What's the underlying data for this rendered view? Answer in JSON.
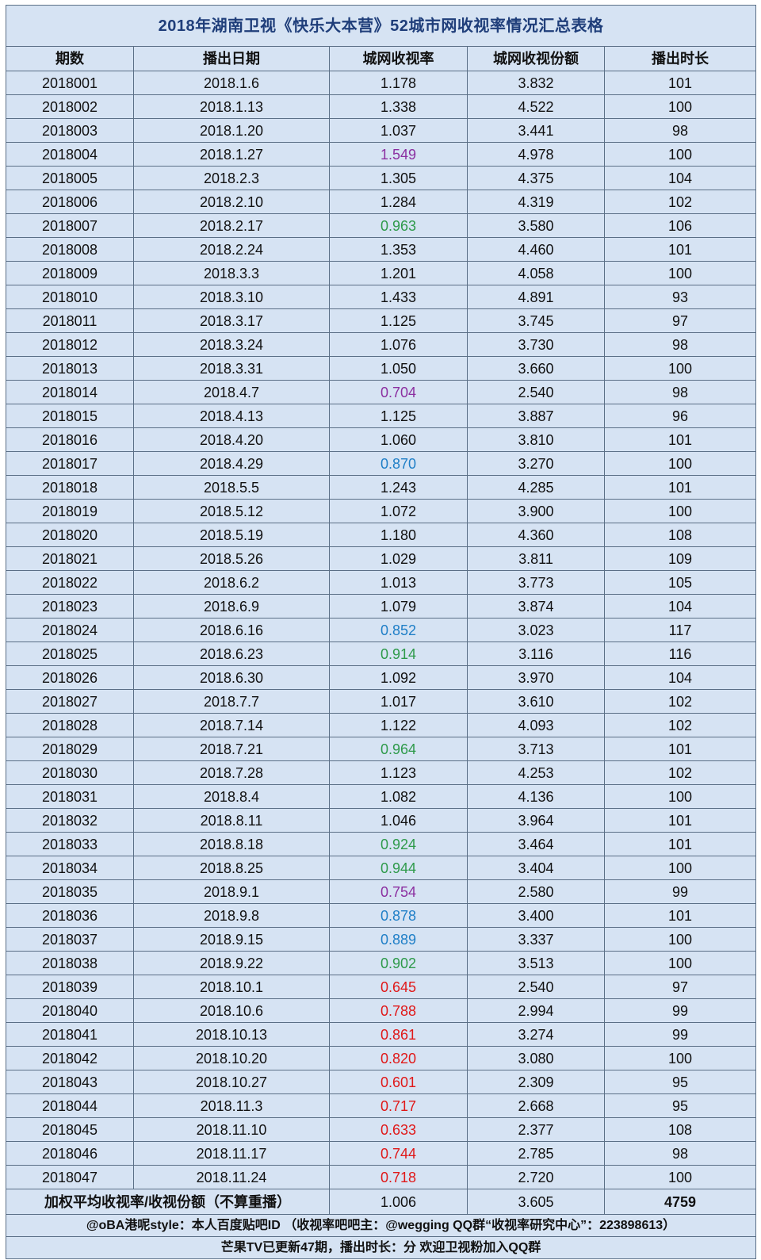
{
  "title": "2018年湖南卫视《快乐大本营》52城市网收视率情况汇总表格",
  "headers": [
    "期数",
    "播出日期",
    "城网收视率",
    "城网收视份额",
    "播出时长"
  ],
  "colors": {
    "default": "#111111",
    "purple": "#8b2fa0",
    "green": "#2e9a4a",
    "blue": "#1f7fc7",
    "red": "#e01818",
    "header_text": "#1f3e7a",
    "background": "#d6e3f3"
  },
  "rows": [
    {
      "issue": "2018001",
      "date": "2018.1.6",
      "rating": "1.178",
      "share": "3.832",
      "duration": "101",
      "color": "default"
    },
    {
      "issue": "2018002",
      "date": "2018.1.13",
      "rating": "1.338",
      "share": "4.522",
      "duration": "100",
      "color": "default"
    },
    {
      "issue": "2018003",
      "date": "2018.1.20",
      "rating": "1.037",
      "share": "3.441",
      "duration": "98",
      "color": "default"
    },
    {
      "issue": "2018004",
      "date": "2018.1.27",
      "rating": "1.549",
      "share": "4.978",
      "duration": "100",
      "color": "purple"
    },
    {
      "issue": "2018005",
      "date": "2018.2.3",
      "rating": "1.305",
      "share": "4.375",
      "duration": "104",
      "color": "default"
    },
    {
      "issue": "2018006",
      "date": "2018.2.10",
      "rating": "1.284",
      "share": "4.319",
      "duration": "102",
      "color": "default"
    },
    {
      "issue": "2018007",
      "date": "2018.2.17",
      "rating": "0.963",
      "share": "3.580",
      "duration": "106",
      "color": "green"
    },
    {
      "issue": "2018008",
      "date": "2018.2.24",
      "rating": "1.353",
      "share": "4.460",
      "duration": "101",
      "color": "default"
    },
    {
      "issue": "2018009",
      "date": "2018.3.3",
      "rating": "1.201",
      "share": "4.058",
      "duration": "100",
      "color": "default"
    },
    {
      "issue": "2018010",
      "date": "2018.3.10",
      "rating": "1.433",
      "share": "4.891",
      "duration": "93",
      "color": "default"
    },
    {
      "issue": "2018011",
      "date": "2018.3.17",
      "rating": "1.125",
      "share": "3.745",
      "duration": "97",
      "color": "default"
    },
    {
      "issue": "2018012",
      "date": "2018.3.24",
      "rating": "1.076",
      "share": "3.730",
      "duration": "98",
      "color": "default"
    },
    {
      "issue": "2018013",
      "date": "2018.3.31",
      "rating": "1.050",
      "share": "3.660",
      "duration": "100",
      "color": "default"
    },
    {
      "issue": "2018014",
      "date": "2018.4.7",
      "rating": "0.704",
      "share": "2.540",
      "duration": "98",
      "color": "purple"
    },
    {
      "issue": "2018015",
      "date": "2018.4.13",
      "rating": "1.125",
      "share": "3.887",
      "duration": "96",
      "color": "default"
    },
    {
      "issue": "2018016",
      "date": "2018.4.20",
      "rating": "1.060",
      "share": "3.810",
      "duration": "101",
      "color": "default"
    },
    {
      "issue": "2018017",
      "date": "2018.4.29",
      "rating": "0.870",
      "share": "3.270",
      "duration": "100",
      "color": "blue"
    },
    {
      "issue": "2018018",
      "date": "2018.5.5",
      "rating": "1.243",
      "share": "4.285",
      "duration": "101",
      "color": "default"
    },
    {
      "issue": "2018019",
      "date": "2018.5.12",
      "rating": "1.072",
      "share": "3.900",
      "duration": "100",
      "color": "default"
    },
    {
      "issue": "2018020",
      "date": "2018.5.19",
      "rating": "1.180",
      "share": "4.360",
      "duration": "108",
      "color": "default"
    },
    {
      "issue": "2018021",
      "date": "2018.5.26",
      "rating": "1.029",
      "share": "3.811",
      "duration": "109",
      "color": "default"
    },
    {
      "issue": "2018022",
      "date": "2018.6.2",
      "rating": "1.013",
      "share": "3.773",
      "duration": "105",
      "color": "default"
    },
    {
      "issue": "2018023",
      "date": "2018.6.9",
      "rating": "1.079",
      "share": "3.874",
      "duration": "104",
      "color": "default"
    },
    {
      "issue": "2018024",
      "date": "2018.6.16",
      "rating": "0.852",
      "share": "3.023",
      "duration": "117",
      "color": "blue"
    },
    {
      "issue": "2018025",
      "date": "2018.6.23",
      "rating": "0.914",
      "share": "3.116",
      "duration": "116",
      "color": "green"
    },
    {
      "issue": "2018026",
      "date": "2018.6.30",
      "rating": "1.092",
      "share": "3.970",
      "duration": "104",
      "color": "default"
    },
    {
      "issue": "2018027",
      "date": "2018.7.7",
      "rating": "1.017",
      "share": "3.610",
      "duration": "102",
      "color": "default"
    },
    {
      "issue": "2018028",
      "date": "2018.7.14",
      "rating": "1.122",
      "share": "4.093",
      "duration": "102",
      "color": "default"
    },
    {
      "issue": "2018029",
      "date": "2018.7.21",
      "rating": "0.964",
      "share": "3.713",
      "duration": "101",
      "color": "green"
    },
    {
      "issue": "2018030",
      "date": "2018.7.28",
      "rating": "1.123",
      "share": "4.253",
      "duration": "102",
      "color": "default"
    },
    {
      "issue": "2018031",
      "date": "2018.8.4",
      "rating": "1.082",
      "share": "4.136",
      "duration": "100",
      "color": "default"
    },
    {
      "issue": "2018032",
      "date": "2018.8.11",
      "rating": "1.046",
      "share": "3.964",
      "duration": "101",
      "color": "default"
    },
    {
      "issue": "2018033",
      "date": "2018.8.18",
      "rating": "0.924",
      "share": "3.464",
      "duration": "101",
      "color": "green"
    },
    {
      "issue": "2018034",
      "date": "2018.8.25",
      "rating": "0.944",
      "share": "3.404",
      "duration": "100",
      "color": "green"
    },
    {
      "issue": "2018035",
      "date": "2018.9.1",
      "rating": "0.754",
      "share": "2.580",
      "duration": "99",
      "color": "purple"
    },
    {
      "issue": "2018036",
      "date": "2018.9.8",
      "rating": "0.878",
      "share": "3.400",
      "duration": "101",
      "color": "blue"
    },
    {
      "issue": "2018037",
      "date": "2018.9.15",
      "rating": "0.889",
      "share": "3.337",
      "duration": "100",
      "color": "blue"
    },
    {
      "issue": "2018038",
      "date": "2018.9.22",
      "rating": "0.902",
      "share": "3.513",
      "duration": "100",
      "color": "green"
    },
    {
      "issue": "2018039",
      "date": "2018.10.1",
      "rating": "0.645",
      "share": "2.540",
      "duration": "97",
      "color": "red"
    },
    {
      "issue": "2018040",
      "date": "2018.10.6",
      "rating": "0.788",
      "share": "2.994",
      "duration": "99",
      "color": "red"
    },
    {
      "issue": "2018041",
      "date": "2018.10.13",
      "rating": "0.861",
      "share": "3.274",
      "duration": "99",
      "color": "red"
    },
    {
      "issue": "2018042",
      "date": "2018.10.20",
      "rating": "0.820",
      "share": "3.080",
      "duration": "100",
      "color": "red"
    },
    {
      "issue": "2018043",
      "date": "2018.10.27",
      "rating": "0.601",
      "share": "2.309",
      "duration": "95",
      "color": "red"
    },
    {
      "issue": "2018044",
      "date": "2018.11.3",
      "rating": "0.717",
      "share": "2.668",
      "duration": "95",
      "color": "red"
    },
    {
      "issue": "2018045",
      "date": "2018.11.10",
      "rating": "0.633",
      "share": "2.377",
      "duration": "108",
      "color": "red"
    },
    {
      "issue": "2018046",
      "date": "2018.11.17",
      "rating": "0.744",
      "share": "2.785",
      "duration": "98",
      "color": "red"
    },
    {
      "issue": "2018047",
      "date": "2018.11.24",
      "rating": "0.718",
      "share": "2.720",
      "duration": "100",
      "color": "red"
    }
  ],
  "summary": {
    "label": "加权平均收视率/收视份额（不算重播）",
    "rating": "1.006",
    "share": "3.605",
    "total_duration": "4759"
  },
  "notes": {
    "line1": "@oBA港呢style：本人百度贴吧ID （收视率吧吧主：@wegging QQ群“收视率研究中心”：223898613）",
    "line2": "芒果TV已更新47期，播出时长：分 欢迎卫视粉加入QQ群"
  }
}
